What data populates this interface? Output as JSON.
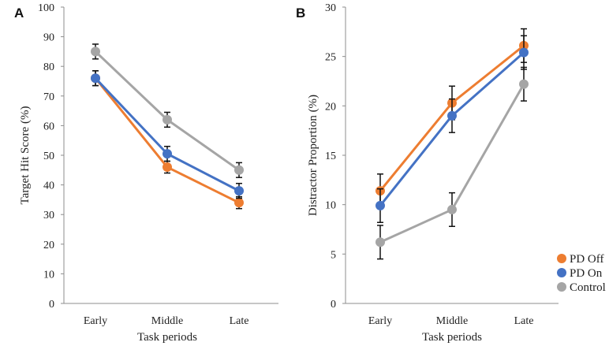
{
  "chart_data": [
    {
      "type": "line",
      "panel_label": "A",
      "title": "",
      "xlabel": "Task periods",
      "ylabel": "Target Hit Score (%)",
      "categories": [
        "Early",
        "Middle",
        "Late"
      ],
      "ylim": [
        0,
        100
      ],
      "yticks": [
        0,
        10,
        20,
        30,
        40,
        50,
        60,
        70,
        80,
        90,
        100
      ],
      "grid": false,
      "series": [
        {
          "name": "PD Off",
          "color": "#ED7D31",
          "values": [
            76,
            46,
            34
          ],
          "errors": [
            2.5,
            2,
            2
          ]
        },
        {
          "name": "PD On",
          "color": "#4472C4",
          "values": [
            76,
            50.5,
            38
          ],
          "errors": [
            2.5,
            2.5,
            2.5
          ]
        },
        {
          "name": "Control",
          "color": "#A5A5A5",
          "values": [
            85,
            62,
            45
          ],
          "errors": [
            2.5,
            2.5,
            2.5
          ]
        }
      ]
    },
    {
      "type": "line",
      "panel_label": "B",
      "title": "",
      "xlabel": "Task periods",
      "ylabel": "Distractor Proportion (%)",
      "categories": [
        "Early",
        "Middle",
        "Late"
      ],
      "ylim": [
        0,
        30
      ],
      "yticks": [
        0,
        5,
        10,
        15,
        20,
        25,
        30
      ],
      "grid": false,
      "legend_position": "bottom-right",
      "series": [
        {
          "name": "PD Off",
          "color": "#ED7D31",
          "values": [
            11.4,
            20.3,
            26.1
          ],
          "errors": [
            1.7,
            1.7,
            1.7
          ]
        },
        {
          "name": "PD On",
          "color": "#4472C4",
          "values": [
            9.9,
            19.0,
            25.4
          ],
          "errors": [
            1.7,
            1.7,
            1.7
          ]
        },
        {
          "name": "Control",
          "color": "#A5A5A5",
          "values": [
            6.2,
            9.5,
            22.2
          ],
          "errors": [
            1.7,
            1.7,
            1.7
          ]
        }
      ]
    }
  ]
}
